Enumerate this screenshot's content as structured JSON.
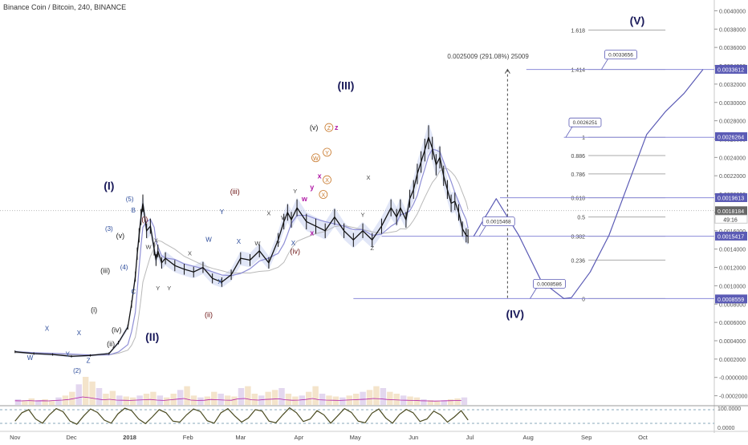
{
  "header": {
    "title": "Binance Coin / Bitcoin, 240, BINANCE"
  },
  "colors": {
    "wave": "#5b5bb5",
    "fib_line": "#8c8cd9",
    "candle": "#111111",
    "ma_fast": "#8f8fd6",
    "ma_slow": "#b9b9b9",
    "cloud": "#a8b6e8",
    "badge": "#5b5bb5",
    "label_primary": "#1a1a5a",
    "label_x": "#2a4a9a",
    "label_wxy": "#b01aa5",
    "label_iii": "#6a1010",
    "label_orange": "#c8782a",
    "osc": "#4a4a20"
  },
  "chart_data": {
    "type": "candlestick",
    "symbol": "Binance Coin / Bitcoin",
    "interval": "240",
    "exchange": "BINANCE",
    "price_axis": {
      "ylim": [
        -0.0003,
        0.0041
      ],
      "ticks": [
        "0.0040000",
        "0.0038000",
        "0.0036000",
        "0.0034000",
        "0.0032000",
        "0.0030000",
        "0.0028000",
        "0.0026000",
        "0.0024000",
        "0.0022000",
        "0.0020000",
        "0.0018000",
        "0.0016000",
        "0.0014000",
        "0.0012000",
        "0.0010000",
        "0.0008000",
        "0.0006000",
        "0.0004000",
        "0.0002000",
        "-0.0000000",
        "-0.0002000"
      ],
      "tick_values": [
        0.004,
        0.0038,
        0.0036,
        0.0034,
        0.0032,
        0.003,
        0.0028,
        0.0026,
        0.0024,
        0.0022,
        0.002,
        0.0018,
        0.0016,
        0.0014,
        0.0012,
        0.001,
        0.0008,
        0.0006,
        0.0004,
        0.0002,
        0,
        -0.0002
      ],
      "badges": [
        {
          "value": 0.0033612,
          "text": "0.0033612"
        },
        {
          "value": 0.0026264,
          "text": "0.0026264"
        },
        {
          "value": 0.0019613,
          "text": "0.0019613"
        },
        {
          "value": 0.0018184,
          "text": "0.0018184"
        },
        {
          "value": 0.0015417,
          "text": "0.0015417"
        },
        {
          "value": 0.0008559,
          "text": "0.0008559"
        }
      ],
      "countdown": "49:16"
    },
    "osc_axis": {
      "ticks": [
        "100.0000",
        "0.0000"
      ]
    },
    "x_axis": {
      "labels": [
        "Nov",
        "Dec",
        "2018",
        "Feb",
        "Mar",
        "Apr",
        "May",
        "Jun",
        "Jul",
        "Aug",
        "Sep",
        "Oct"
      ],
      "label_days": [
        0,
        30,
        61,
        92,
        120,
        151,
        181,
        212,
        242,
        273,
        304,
        334
      ]
    },
    "price_series": {
      "day": [
        0,
        10,
        20,
        30,
        40,
        50,
        55,
        60,
        62,
        64,
        65,
        66,
        67,
        68,
        70,
        72,
        74,
        75,
        76,
        78,
        80,
        85,
        90,
        95,
        100,
        105,
        110,
        115,
        120,
        125,
        130,
        135,
        140,
        143,
        145,
        147,
        150,
        155,
        160,
        165,
        170,
        175,
        180,
        185,
        190,
        195,
        200,
        203,
        205,
        208,
        210,
        212,
        214,
        216,
        218,
        220,
        222,
        224,
        226,
        228,
        230,
        232,
        234,
        236,
        238,
        240,
        241
      ],
      "close": [
        0.00028,
        0.00026,
        0.00025,
        0.00023,
        0.00024,
        0.00026,
        0.00038,
        0.00055,
        0.0008,
        0.0011,
        0.00135,
        0.00155,
        0.00175,
        0.0019,
        0.0016,
        0.00165,
        0.0014,
        0.00128,
        0.00138,
        0.00125,
        0.0013,
        0.00122,
        0.00118,
        0.00115,
        0.0012,
        0.00108,
        0.00104,
        0.00112,
        0.0013,
        0.00128,
        0.00138,
        0.00125,
        0.0015,
        0.0017,
        0.0018,
        0.00172,
        0.00185,
        0.0017,
        0.00165,
        0.0016,
        0.00175,
        0.0016,
        0.0015,
        0.0016,
        0.0015,
        0.00165,
        0.00185,
        0.00175,
        0.00185,
        0.00172,
        0.00195,
        0.00205,
        0.00222,
        0.00235,
        0.00248,
        0.00262,
        0.0025,
        0.00232,
        0.0024,
        0.0022,
        0.00205,
        0.0019,
        0.00192,
        0.0018,
        0.00162,
        0.00155,
        0.00154
      ]
    },
    "projection": {
      "day": [
        244,
        256,
        268,
        280,
        292,
        296,
        306,
        316,
        326,
        336,
        346,
        356,
        366
      ],
      "price": [
        0.00154,
        0.00195,
        0.00155,
        0.00105,
        0.00086,
        0.00087,
        0.00115,
        0.00155,
        0.0021,
        0.00265,
        0.0029,
        0.0031,
        0.00336
      ]
    },
    "fibonacci": [
      {
        "level": "1.618",
        "price": 0.00379
      },
      {
        "level": "1.414",
        "price": 0.00336
      },
      {
        "level": "1",
        "price": 0.00262
      },
      {
        "level": "0.886",
        "price": 0.00242
      },
      {
        "level": "0.786",
        "price": 0.00222
      },
      {
        "level": "0.618",
        "price": 0.00196
      },
      {
        "level": "0.5",
        "price": 0.00175
      },
      {
        "level": "0.382",
        "price": 0.00154
      },
      {
        "level": "0.236",
        "price": 0.00128
      },
      {
        "level": "0",
        "price": 0.00086
      }
    ],
    "measure_label": "0.0025009 (291.08%) 25009",
    "projection_badges": [
      {
        "text": "0.0033656",
        "day": 312,
        "price": 0.00336
      },
      {
        "text": "0.0026251",
        "day": 293,
        "price": 0.00262
      },
      {
        "text": "0.0015468",
        "day": 247,
        "price": 0.00154
      },
      {
        "text": "0.0008586",
        "day": 274,
        "price": 0.00086
      }
    ],
    "wave_labels": [
      {
        "t": "(I)",
        "day": 50,
        "price": 0.00205,
        "style": "primary"
      },
      {
        "t": "(II)",
        "day": 73,
        "price": 0.0004,
        "style": "primary"
      },
      {
        "t": "(III)",
        "day": 176,
        "price": 0.00314,
        "style": "primary"
      },
      {
        "t": "(IV)",
        "day": 266,
        "price": 0.00065,
        "style": "primary"
      },
      {
        "t": "(V)",
        "day": 331,
        "price": 0.00385,
        "style": "primary"
      },
      {
        "t": "(i)",
        "day": 42,
        "price": 0.00071,
        "style": "minor"
      },
      {
        "t": "(ii)",
        "day": 51,
        "price": 0.00034,
        "style": "minor"
      },
      {
        "t": "(iii)",
        "day": 48,
        "price": 0.00114,
        "style": "minor"
      },
      {
        "t": "(iv)",
        "day": 54,
        "price": 0.00049,
        "style": "minor"
      },
      {
        "t": "(v)",
        "day": 56,
        "price": 0.00152,
        "style": "minor"
      },
      {
        "t": "(iii)",
        "day": 117,
        "price": 0.002,
        "style": "iii"
      },
      {
        "t": "(ii)",
        "day": 103,
        "price": 0.00066,
        "style": "iii"
      },
      {
        "t": "(iv)",
        "day": 149,
        "price": 0.00135,
        "style": "iii"
      },
      {
        "t": "(i)",
        "day": 69,
        "price": 0.0017,
        "style": "iii"
      },
      {
        "t": "(v)",
        "day": 159,
        "price": 0.0027,
        "style": "minor"
      },
      {
        "t": "W",
        "day": 8,
        "price": 0.00019,
        "style": "x"
      },
      {
        "t": "X",
        "day": 17,
        "price": 0.00051,
        "style": "x"
      },
      {
        "t": "Y",
        "day": 28,
        "price": 0.00023,
        "style": "x"
      },
      {
        "t": "X",
        "day": 34,
        "price": 0.00046,
        "style": "x"
      },
      {
        "t": "Z",
        "day": 39,
        "price": 0.00016,
        "style": "x"
      },
      {
        "t": "(2)",
        "day": 33,
        "price": 5e-05,
        "style": "x"
      },
      {
        "t": "(3)",
        "day": 50,
        "price": 0.0016,
        "style": "x"
      },
      {
        "t": "(4)",
        "day": 58,
        "price": 0.00118,
        "style": "x"
      },
      {
        "t": "(5)",
        "day": 61,
        "price": 0.00192,
        "style": "x"
      },
      {
        "t": "B",
        "day": 63,
        "price": 0.0018,
        "style": "x"
      },
      {
        "t": "C",
        "day": 63,
        "price": 0.00091,
        "style": "x"
      },
      {
        "t": "W",
        "day": 71,
        "price": 0.0014,
        "style": "small"
      },
      {
        "t": "X",
        "day": 75,
        "price": 0.00147,
        "style": "small"
      },
      {
        "t": "Y",
        "day": 82,
        "price": 0.00095,
        "style": "small"
      },
      {
        "t": "Y",
        "day": 76,
        "price": 0.00095,
        "style": "small"
      },
      {
        "t": "X",
        "day": 93,
        "price": 0.00133,
        "style": "small"
      },
      {
        "t": "W",
        "day": 103,
        "price": 0.00148,
        "style": "x"
      },
      {
        "t": "X",
        "day": 109,
        "price": 0.00102,
        "style": "x"
      },
      {
        "t": "Y",
        "day": 110,
        "price": 0.00178,
        "style": "x"
      },
      {
        "t": "X",
        "day": 119,
        "price": 0.00146,
        "style": "x"
      },
      {
        "t": "W",
        "day": 129,
        "price": 0.00144,
        "style": "small"
      },
      {
        "t": "X",
        "day": 135,
        "price": 0.00177,
        "style": "small"
      },
      {
        "t": "Y",
        "day": 140,
        "price": 0.00144,
        "style": "small"
      },
      {
        "t": "W",
        "day": 143,
        "price": 0.00172,
        "style": "small"
      },
      {
        "t": "Y",
        "day": 149,
        "price": 0.00201,
        "style": "small"
      },
      {
        "t": "X",
        "day": 148,
        "price": 0.00144,
        "style": "x"
      },
      {
        "t": "w",
        "day": 154,
        "price": 0.00192,
        "style": "wxy"
      },
      {
        "t": "x",
        "day": 158,
        "price": 0.00155,
        "style": "wxy"
      },
      {
        "t": "y",
        "day": 158,
        "price": 0.00205,
        "style": "wxy"
      },
      {
        "t": "x",
        "day": 162,
        "price": 0.00217,
        "style": "wxy"
      },
      {
        "t": "z",
        "day": 171,
        "price": 0.0027,
        "style": "wxy"
      },
      {
        "t": "W",
        "day": 160,
        "price": 0.00237,
        "style": "orange"
      },
      {
        "t": "X",
        "day": 164,
        "price": 0.00197,
        "style": "orange"
      },
      {
        "t": "Y",
        "day": 166,
        "price": 0.00243,
        "style": "orange"
      },
      {
        "t": "X",
        "day": 166,
        "price": 0.00213,
        "style": "orange"
      },
      {
        "t": "Z",
        "day": 167,
        "price": 0.0027,
        "style": "orange"
      },
      {
        "t": "X",
        "day": 188,
        "price": 0.00216,
        "style": "small"
      },
      {
        "t": "Y",
        "day": 185,
        "price": 0.00175,
        "style": "small"
      },
      {
        "t": "Z",
        "day": 190,
        "price": 0.00139,
        "style": "small"
      }
    ],
    "volume": [
      6,
      5,
      7,
      5,
      6,
      5,
      8,
      10,
      14,
      22,
      30,
      25,
      18,
      12,
      15,
      10,
      9,
      8,
      10,
      12,
      14,
      10,
      8,
      12,
      16,
      20,
      10,
      8,
      9,
      14,
      12,
      10,
      9,
      18,
      20,
      12,
      10,
      14,
      16,
      18,
      12,
      9,
      10,
      14,
      20,
      12,
      10,
      9,
      8,
      10,
      12,
      14,
      16,
      20,
      18,
      14,
      12,
      10,
      9,
      8,
      6,
      5,
      4,
      5,
      6,
      7,
      8
    ],
    "oscillator": [
      30,
      70,
      85,
      40,
      20,
      60,
      90,
      75,
      30,
      15,
      55,
      88,
      72,
      35,
      20,
      65,
      92,
      80,
      40,
      18,
      50,
      85,
      70,
      30,
      25,
      60,
      88,
      76,
      32,
      20,
      70,
      90,
      55,
      25,
      45,
      85,
      78,
      30,
      22,
      60,
      94,
      70,
      28,
      40,
      80,
      60,
      20,
      55,
      90,
      72,
      30,
      22,
      68,
      88,
      45,
      20,
      62,
      86,
      70,
      28,
      40,
      78,
      60,
      25,
      50,
      80,
      35
    ]
  }
}
